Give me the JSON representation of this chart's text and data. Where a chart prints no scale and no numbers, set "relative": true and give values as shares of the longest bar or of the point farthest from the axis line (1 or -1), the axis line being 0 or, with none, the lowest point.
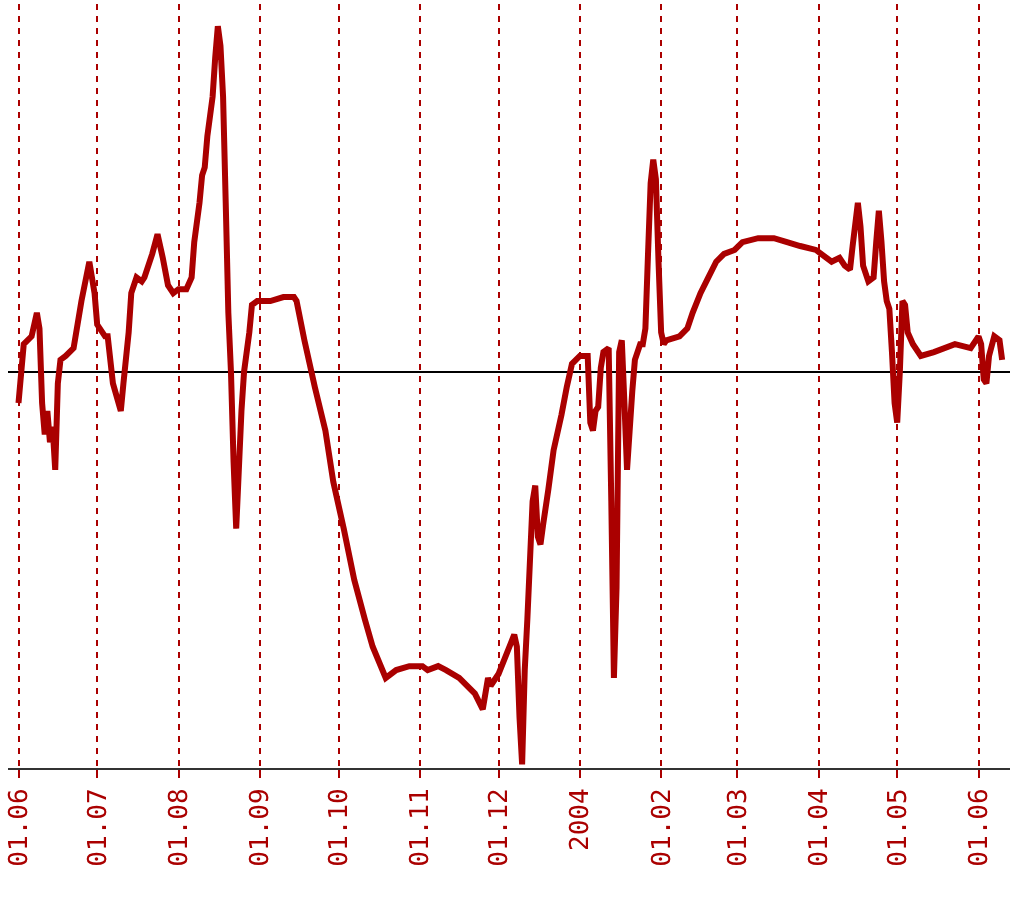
{
  "chart_data": {
    "type": "line",
    "relative": true,
    "grid": "x",
    "legend": false,
    "marker": "none",
    "line_style": "solid",
    "xlim": [
      "2003-05-28",
      "2004-06-13"
    ],
    "xticks": [
      {
        "value": "2003-06-01",
        "label": "01.06"
      },
      {
        "value": "2003-07-01",
        "label": "01.07"
      },
      {
        "value": "2003-08-01",
        "label": "01.08"
      },
      {
        "value": "2003-09-01",
        "label": "01.09"
      },
      {
        "value": "2003-10-01",
        "label": "01.10"
      },
      {
        "value": "2003-11-01",
        "label": "01.11"
      },
      {
        "value": "2003-12-01",
        "label": "01.12"
      },
      {
        "value": "2004-01-01",
        "label": "2004"
      },
      {
        "value": "2004-02-01",
        "label": "01.02"
      },
      {
        "value": "2004-03-01",
        "label": "01.03"
      },
      {
        "value": "2004-04-01",
        "label": "01.04"
      },
      {
        "value": "2004-05-01",
        "label": "01.05"
      },
      {
        "value": "2004-06-01",
        "label": "01.06"
      }
    ],
    "x": [
      "2003-06-01",
      "2003-06-03",
      "2003-06-06",
      "2003-06-08",
      "2003-06-09",
      "2003-06-10",
      "2003-06-11",
      "2003-06-12",
      "2003-06-13",
      "2003-06-14",
      "2003-06-15",
      "2003-06-16",
      "2003-06-17",
      "2003-06-19",
      "2003-06-22",
      "2003-06-23",
      "2003-06-25",
      "2003-06-28",
      "2003-06-30",
      "2003-07-01",
      "2003-07-04",
      "2003-07-05",
      "2003-07-07",
      "2003-07-10",
      "2003-07-11",
      "2003-07-13",
      "2003-07-14",
      "2003-07-16",
      "2003-07-18",
      "2003-07-19",
      "2003-07-22",
      "2003-07-24",
      "2003-07-26",
      "2003-07-28",
      "2003-07-30",
      "2003-08-01",
      "2003-08-04",
      "2003-08-06",
      "2003-08-07",
      "2003-08-09",
      "2003-08-10",
      "2003-08-11",
      "2003-08-12",
      "2003-08-14",
      "2003-08-15",
      "2003-08-16",
      "2003-08-17",
      "2003-08-18",
      "2003-08-19",
      "2003-08-20",
      "2003-08-21",
      "2003-08-22",
      "2003-08-23",
      "2003-08-24",
      "2003-08-25",
      "2003-08-26",
      "2003-08-28",
      "2003-08-29",
      "2003-08-31",
      "2003-09-05",
      "2003-09-10",
      "2003-09-14",
      "2003-09-15",
      "2003-09-18",
      "2003-09-22",
      "2003-09-26",
      "2003-09-29",
      "2003-10-03",
      "2003-10-07",
      "2003-10-11",
      "2003-10-14",
      "2003-10-19",
      "2003-10-23",
      "2003-10-28",
      "2003-11-02",
      "2003-11-04",
      "2003-11-08",
      "2003-11-11",
      "2003-11-16",
      "2003-11-22",
      "2003-11-25",
      "2003-11-27",
      "2003-11-28",
      "2003-12-01",
      "2003-12-04",
      "2003-12-07",
      "2003-12-08",
      "2003-12-09",
      "2003-12-10",
      "2003-12-11",
      "2003-12-12",
      "2003-12-13",
      "2003-12-14",
      "2003-12-15",
      "2003-12-16",
      "2003-12-17",
      "2003-12-18",
      "2003-12-20",
      "2003-12-22",
      "2003-12-25",
      "2003-12-27",
      "2003-12-29",
      "2004-01-01",
      "2004-01-04",
      "2004-01-05",
      "2004-01-06",
      "2004-01-07",
      "2004-01-08",
      "2004-01-09",
      "2004-01-10",
      "2004-01-12",
      "2004-01-13",
      "2004-01-14",
      "2004-01-15",
      "2004-01-16",
      "2004-01-17",
      "2004-01-18",
      "2004-01-19",
      "2004-01-21",
      "2004-01-22",
      "2004-01-24",
      "2004-01-25",
      "2004-01-26",
      "2004-01-27",
      "2004-01-28",
      "2004-01-29",
      "2004-01-30",
      "2004-01-31",
      "2004-02-01",
      "2004-02-02",
      "2004-02-03",
      "2004-02-08",
      "2004-02-11",
      "2004-02-13",
      "2004-02-16",
      "2004-02-19",
      "2004-02-22",
      "2004-02-25",
      "2004-02-29",
      "2004-03-03",
      "2004-03-09",
      "2004-03-15",
      "2004-03-20",
      "2004-03-25",
      "2004-03-31",
      "2004-04-06",
      "2004-04-09",
      "2004-04-11",
      "2004-04-13",
      "2004-04-14",
      "2004-04-16",
      "2004-04-17",
      "2004-04-18",
      "2004-04-20",
      "2004-04-22",
      "2004-04-23",
      "2004-04-24",
      "2004-04-25",
      "2004-04-26",
      "2004-04-27",
      "2004-04-28",
      "2004-04-29",
      "2004-04-30",
      "2004-05-01",
      "2004-05-02",
      "2004-05-03",
      "2004-05-04",
      "2004-05-05",
      "2004-05-07",
      "2004-05-10",
      "2004-05-15",
      "2004-05-23",
      "2004-05-29",
      "2004-06-01",
      "2004-06-02",
      "2004-06-03",
      "2004-06-04",
      "2004-06-05",
      "2004-06-07",
      "2004-06-09",
      "2004-06-10"
    ],
    "series": [
      {
        "color": "#aa0000",
        "values": [
          -0.08,
          0.07,
          0.09,
          0.15,
          0.11,
          -0.08,
          -0.16,
          -0.1,
          -0.18,
          -0.14,
          -0.25,
          -0.03,
          0.03,
          0.04,
          0.06,
          0.1,
          0.18,
          0.28,
          0.2,
          0.12,
          0.09,
          0.09,
          -0.03,
          -0.1,
          -0.03,
          0.1,
          0.2,
          0.24,
          0.23,
          0.24,
          0.3,
          0.35,
          0.29,
          0.22,
          0.2,
          0.21,
          0.21,
          0.24,
          0.33,
          0.43,
          0.5,
          0.52,
          0.6,
          0.7,
          0.8,
          0.88,
          0.83,
          0.7,
          0.43,
          0.15,
          0,
          -0.23,
          -0.4,
          -0.25,
          -0.1,
          0,
          0.1,
          0.17,
          0.18,
          0.18,
          0.19,
          0.19,
          0.18,
          0.08,
          -0.04,
          -0.15,
          -0.28,
          -0.4,
          -0.53,
          -0.63,
          -0.7,
          -0.78,
          -0.76,
          -0.75,
          -0.75,
          -0.76,
          -0.75,
          -0.76,
          -0.78,
          -0.82,
          -0.86,
          -0.78,
          -0.8,
          -0.77,
          -0.72,
          -0.67,
          -0.7,
          -0.88,
          -1,
          -0.76,
          -0.63,
          -0.48,
          -0.33,
          -0.29,
          -0.42,
          -0.44,
          -0.39,
          -0.3,
          -0.2,
          -0.11,
          -0.04,
          0.02,
          0.04,
          0.04,
          -0.13,
          -0.15,
          -0.1,
          -0.09,
          0.01,
          0.05,
          0.06,
          -0.33,
          -0.78,
          -0.55,
          0.05,
          0.08,
          -0.08,
          -0.25,
          -0.05,
          0.03,
          0.07,
          0.07,
          0.11,
          0.3,
          0.48,
          0.54,
          0.49,
          0.28,
          0.1,
          0.07,
          0.08,
          0.09,
          0.11,
          0.15,
          0.2,
          0.24,
          0.28,
          0.3,
          0.31,
          0.33,
          0.34,
          0.34,
          0.33,
          0.32,
          0.31,
          0.28,
          0.29,
          0.27,
          0.26,
          0.32,
          0.43,
          0.37,
          0.27,
          0.23,
          0.24,
          0.33,
          0.41,
          0.33,
          0.23,
          0.18,
          0.16,
          0.05,
          -0.08,
          -0.13,
          0,
          0.18,
          0.17,
          0.1,
          0.07,
          0.04,
          0.05,
          0.07,
          0.06,
          0.09,
          0.07,
          -0.02,
          -0.03,
          0.04,
          0.09,
          0.08,
          0.03
        ]
      }
    ]
  }
}
